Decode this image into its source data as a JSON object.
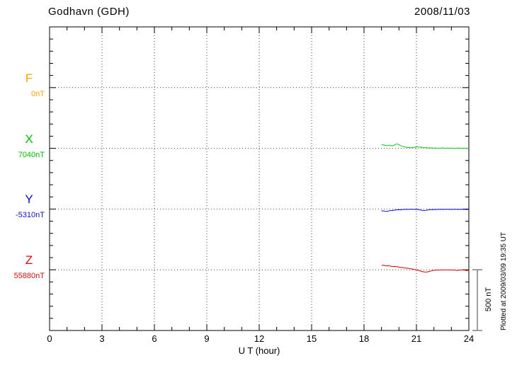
{
  "header": {
    "title": "Godhavn (GDH)",
    "date": "2008/11/03"
  },
  "chart_data": {
    "type": "line",
    "title": "Godhavn (GDH)",
    "date": "2008/11/03",
    "xlabel": "U T (hour)",
    "xlim": [
      0,
      24
    ],
    "x_major_tick_step_hours": 3,
    "x_minor_tick_step_hours": 1,
    "x_tick_labels": [
      "0",
      "3",
      "6",
      "9",
      "12",
      "15",
      "18",
      "21",
      "24"
    ],
    "grid": "dotted, vertical at every 3 h, horizontal at each component baseline",
    "y_total_span_nT": 2500,
    "y_minor_tick_nT": 100,
    "component_separation_nT": 500,
    "scalebar": {
      "label": "500 nT",
      "nT": 500
    },
    "plotted_note": "Plotted at 2009/03/09 19:35 UT",
    "series": [
      {
        "name": "F",
        "baseline_label": "0nT",
        "color": "#FFA500",
        "start_hour": 19.0,
        "step_hour": 0.1,
        "offsets_nT": []
      },
      {
        "name": "X",
        "baseline_label": "7040nT",
        "color": "#00BB00",
        "trace_color": "#22CC22",
        "start_hour": 19.0,
        "step_hour": 0.1,
        "offsets_nT": [
          28,
          30,
          25,
          22,
          26,
          23,
          20,
          24,
          32,
          36,
          30,
          22,
          16,
          12,
          10,
          8,
          6,
          5,
          7,
          9,
          11,
          12,
          10,
          8,
          6,
          5,
          4,
          3,
          4,
          3,
          2,
          3,
          2,
          1,
          2,
          3,
          2,
          1,
          2,
          1,
          2,
          1,
          0,
          1,
          2,
          1,
          0,
          1,
          1,
          0,
          1
        ]
      },
      {
        "name": "Y",
        "baseline_label": "-5310nT",
        "color": "#1111BB",
        "trace_color": "#2222CC",
        "start_hour": 19.0,
        "step_hour": 0.1,
        "offsets_nT": [
          -14,
          -16,
          -18,
          -20,
          -16,
          -12,
          -14,
          -10,
          -8,
          -6,
          -5,
          -6,
          -4,
          -3,
          -2,
          -3,
          -2,
          -1,
          -2,
          -3,
          -2,
          -4,
          -6,
          -10,
          -13,
          -12,
          -9,
          -6,
          -4,
          -5,
          -3,
          -4,
          -3,
          -2,
          -3,
          -2,
          -3,
          -2,
          -2,
          -3,
          -2,
          -3,
          -2,
          -2,
          -3,
          -2,
          -3,
          -2,
          -3,
          -4,
          -3
        ]
      },
      {
        "name": "Z",
        "baseline_label": "55880nT",
        "color": "#CC1111",
        "trace_color": "#DD1111",
        "start_hour": 19.0,
        "step_hour": 0.1,
        "offsets_nT": [
          36,
          38,
          34,
          32,
          35,
          30,
          28,
          27,
          28,
          25,
          22,
          20,
          18,
          16,
          14,
          12,
          10,
          8,
          5,
          2,
          0,
          -4,
          -9,
          -14,
          -17,
          -19,
          -18,
          -15,
          -11,
          -7,
          -5,
          -3,
          -2,
          -3,
          -2,
          -1,
          -2,
          -1,
          -2,
          -1,
          -2,
          -3,
          -2,
          -6,
          -4,
          -2,
          -3,
          -2,
          -4,
          -8,
          -3
        ]
      }
    ]
  }
}
